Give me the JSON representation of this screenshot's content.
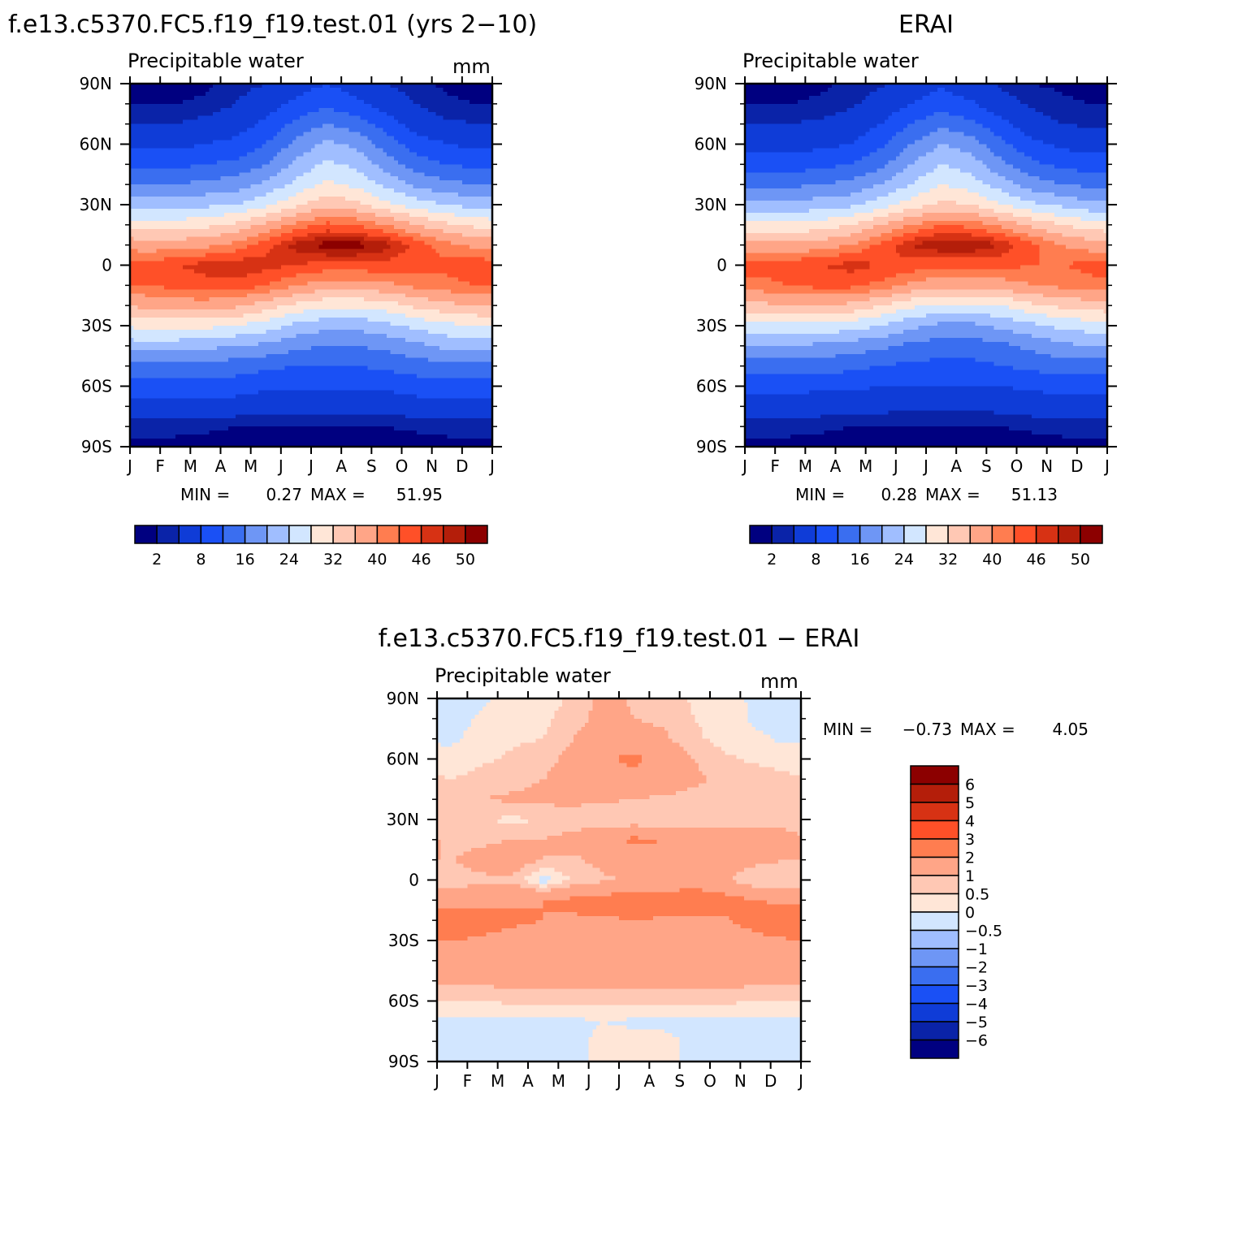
{
  "chart_data": [
    {
      "type": "heatmap",
      "title": "f.e13.c5370.FC5.f19_f19.test.01 (yrs 2−10)",
      "subtitle": "Precipitable water",
      "units": "mm",
      "x_ticks": [
        "J",
        "F",
        "M",
        "A",
        "M",
        "J",
        "J",
        "A",
        "S",
        "O",
        "N",
        "D",
        "J"
      ],
      "y_ticks": [
        "90N",
        "60N",
        "30N",
        "0",
        "30S",
        "60S",
        "90S"
      ],
      "y_values": [
        90,
        60,
        30,
        0,
        -30,
        -60,
        -90
      ],
      "stats": {
        "min_label": "MIN =",
        "min": "0.27",
        "max_label": "MAX =",
        "max": "51.95"
      },
      "months": [
        "Jan",
        "Feb",
        "Mar",
        "Apr",
        "May",
        "Jun",
        "Jul",
        "Aug",
        "Sep",
        "Oct",
        "Nov",
        "Dec"
      ],
      "latitudes": [
        90,
        80,
        70,
        60,
        50,
        40,
        30,
        20,
        10,
        0,
        -10,
        -20,
        -30,
        -40,
        -50,
        -60,
        -70,
        -80,
        -90
      ],
      "values": [
        [
          1,
          1,
          1.5,
          3,
          4,
          6,
          8,
          6,
          4,
          2.5,
          1.5,
          1
        ],
        [
          2,
          2,
          2.5,
          4,
          6,
          9,
          11,
          9,
          6,
          4,
          2.5,
          2
        ],
        [
          4,
          4,
          5,
          6,
          9,
          13,
          16,
          14,
          10,
          6,
          4.5,
          4
        ],
        [
          7,
          7,
          8,
          9,
          12,
          17,
          21,
          19,
          14,
          10,
          8,
          7
        ],
        [
          11,
          11,
          12,
          13,
          16,
          21,
          25,
          23,
          18,
          14,
          12,
          11
        ],
        [
          16,
          16,
          17,
          18,
          21,
          25,
          29,
          27,
          23,
          19,
          17,
          16
        ],
        [
          22,
          22,
          23,
          24,
          27,
          31,
          35,
          33,
          29,
          26,
          24,
          22
        ],
        [
          30,
          30,
          31,
          33,
          37,
          41,
          44,
          43,
          40,
          36,
          33,
          31
        ],
        [
          38,
          38,
          39,
          41,
          45,
          49,
          51,
          51,
          49,
          45,
          41,
          39
        ],
        [
          44,
          46,
          47,
          48,
          47,
          46,
          45,
          45,
          45,
          44,
          44,
          45
        ],
        [
          43,
          44,
          45,
          45,
          43,
          40,
          38,
          38,
          39,
          41,
          42,
          43
        ],
        [
          37,
          38,
          38,
          37,
          34,
          31,
          29,
          29,
          30,
          33,
          35,
          36
        ],
        [
          29,
          29,
          29,
          28,
          26,
          23,
          21,
          21,
          23,
          25,
          27,
          28
        ],
        [
          22,
          22,
          21,
          20,
          19,
          17,
          16,
          16,
          17,
          19,
          21,
          22
        ],
        [
          15,
          15,
          15,
          14,
          13,
          12,
          12,
          12,
          13,
          14,
          15,
          15
        ],
        [
          10,
          10,
          10,
          10,
          9,
          9,
          9,
          9,
          9,
          10,
          10,
          10
        ],
        [
          6,
          6,
          6,
          6,
          5,
          5,
          5,
          5,
          5,
          6,
          6,
          6
        ],
        [
          3,
          3,
          2.5,
          2,
          2,
          1.8,
          1.8,
          1.8,
          2,
          2.5,
          3,
          3
        ],
        [
          1,
          1,
          1,
          0.8,
          0.6,
          0.5,
          0.5,
          0.5,
          0.6,
          0.8,
          1,
          1
        ]
      ],
      "colorbar_labels": [
        "2",
        "8",
        "16",
        "24",
        "32",
        "40",
        "46",
        "50"
      ],
      "levels": [
        2,
        4,
        8,
        12,
        16,
        20,
        24,
        28,
        32,
        36,
        40,
        43,
        46,
        48,
        50
      ],
      "colors": [
        "#000080",
        "#0A23A8",
        "#0F3CD7",
        "#1A50F5",
        "#3A6EF0",
        "#6E96F5",
        "#A0BEFF",
        "#D2E6FF",
        "#FFE6D7",
        "#FFC8B4",
        "#FFA587",
        "#FF7D50",
        "#FF5028",
        "#D73214",
        "#B41E0A",
        "#8C0000"
      ]
    },
    {
      "type": "heatmap",
      "title": "ERAI",
      "subtitle": "Precipitable water",
      "units": "",
      "x_ticks": [
        "J",
        "F",
        "M",
        "A",
        "M",
        "J",
        "J",
        "A",
        "S",
        "O",
        "N",
        "D",
        "J"
      ],
      "y_ticks": [
        "90N",
        "60N",
        "30N",
        "0",
        "30S",
        "60S",
        "90S"
      ],
      "y_values": [
        90,
        60,
        30,
        0,
        -30,
        -60,
        -90
      ],
      "stats": {
        "min_label": "MIN =",
        "min": "0.28",
        "max_label": "MAX =",
        "max": "51.13"
      },
      "months": [
        "Jan",
        "Feb",
        "Mar",
        "Apr",
        "May",
        "Jun",
        "Jul",
        "Aug",
        "Sep",
        "Oct",
        "Nov",
        "Dec"
      ],
      "latitudes": [
        90,
        80,
        70,
        60,
        50,
        40,
        30,
        20,
        10,
        0,
        -10,
        -20,
        -30,
        -40,
        -50,
        -60,
        -70,
        -80,
        -90
      ],
      "values": [
        [
          1,
          1,
          1.5,
          2.5,
          3.5,
          5.5,
          7.5,
          5.5,
          3.5,
          2,
          1.5,
          1
        ],
        [
          2,
          2,
          2.5,
          3.5,
          5.5,
          8,
          10,
          8.5,
          5.5,
          3.5,
          2.5,
          2
        ],
        [
          4,
          4,
          4.5,
          5.5,
          8,
          12,
          15,
          13,
          9,
          5.5,
          4,
          3.5
        ],
        [
          6,
          6,
          7,
          8,
          11,
          16,
          20,
          18,
          13,
          9,
          7,
          6
        ],
        [
          10,
          10,
          11,
          12,
          15,
          20,
          24,
          22,
          17,
          13,
          11,
          10
        ],
        [
          15,
          15,
          16,
          17,
          20,
          24,
          28,
          26,
          22,
          18,
          16,
          15
        ],
        [
          21,
          21,
          22,
          23,
          26,
          30,
          33,
          32,
          28,
          25,
          23,
          21
        ],
        [
          29,
          29,
          30,
          32,
          36,
          40,
          43,
          42,
          39,
          35,
          32,
          30
        ],
        [
          37,
          37,
          38,
          40,
          44,
          48,
          50,
          50,
          48,
          44,
          40,
          38
        ],
        [
          44,
          45,
          46,
          47,
          46,
          45,
          44,
          44,
          44,
          43,
          43,
          44
        ],
        [
          42,
          43,
          44,
          44,
          42,
          39,
          37,
          37,
          38,
          40,
          41,
          42
        ],
        [
          35,
          36,
          36,
          35,
          32,
          29,
          27,
          27,
          28,
          31,
          33,
          34
        ],
        [
          27,
          27,
          27,
          26,
          24,
          21,
          19,
          19,
          21,
          23,
          25,
          26
        ],
        [
          20,
          20,
          19,
          18,
          17,
          15,
          14,
          14,
          15,
          17,
          19,
          20
        ],
        [
          14,
          14,
          14,
          13,
          12,
          11,
          11,
          11,
          12,
          13,
          14,
          14
        ],
        [
          9,
          9,
          9,
          9,
          8,
          8,
          8,
          8,
          8,
          9,
          9,
          9
        ],
        [
          6,
          6,
          5.5,
          5.5,
          5,
          4.5,
          4.5,
          4.5,
          5,
          5.5,
          6,
          6
        ],
        [
          3,
          3,
          2.5,
          2,
          2,
          1.8,
          1.8,
          1.8,
          2,
          2.5,
          3,
          3
        ],
        [
          1,
          1,
          1,
          0.8,
          0.6,
          0.5,
          0.5,
          0.5,
          0.6,
          0.8,
          1,
          1
        ]
      ],
      "colorbar_labels": [
        "2",
        "8",
        "16",
        "24",
        "32",
        "40",
        "46",
        "50"
      ],
      "levels": [
        2,
        4,
        8,
        12,
        16,
        20,
        24,
        28,
        32,
        36,
        40,
        43,
        46,
        48,
        50
      ],
      "colors": [
        "#000080",
        "#0A23A8",
        "#0F3CD7",
        "#1A50F5",
        "#3A6EF0",
        "#6E96F5",
        "#A0BEFF",
        "#D2E6FF",
        "#FFE6D7",
        "#FFC8B4",
        "#FFA587",
        "#FF7D50",
        "#FF5028",
        "#D73214",
        "#B41E0A",
        "#8C0000"
      ]
    },
    {
      "type": "heatmap",
      "title": "f.e13.c5370.FC5.f19_f19.test.01 − ERAI",
      "subtitle": "Precipitable water",
      "units": "mm",
      "x_ticks": [
        "J",
        "F",
        "M",
        "A",
        "M",
        "J",
        "J",
        "A",
        "S",
        "O",
        "N",
        "D",
        "J"
      ],
      "y_ticks": [
        "90N",
        "60N",
        "30N",
        "0",
        "30S",
        "60S",
        "90S"
      ],
      "y_values": [
        90,
        60,
        30,
        0,
        -30,
        -60,
        -90
      ],
      "stats": {
        "min_label": "MIN =",
        "min": "−0.73",
        "max_label": "MAX =",
        "max": "4.05"
      },
      "months": [
        "Jan",
        "Feb",
        "Mar",
        "Apr",
        "May",
        "Jun",
        "Jul",
        "Aug",
        "Sep",
        "Oct",
        "Nov",
        "Dec"
      ],
      "latitudes": [
        90,
        80,
        70,
        60,
        50,
        40,
        30,
        20,
        10,
        0,
        -10,
        -20,
        -30,
        -40,
        -50,
        -60,
        -70,
        -80,
        -90
      ],
      "values": [
        [
          -0.2,
          -0.1,
          0.2,
          0.3,
          0.6,
          1.2,
          0.9,
          0.8,
          0.4,
          0.2,
          -0.1,
          -0.2
        ],
        [
          -0.2,
          0.1,
          0.3,
          0.4,
          0.7,
          1.3,
          1.0,
          0.9,
          0.5,
          0.3,
          -0.1,
          -0.1
        ],
        [
          -0.1,
          0.2,
          0.4,
          0.5,
          1.0,
          1.5,
          1.2,
          1.1,
          0.6,
          0.3,
          0.1,
          -0.1
        ],
        [
          0.2,
          0.4,
          0.6,
          0.8,
          1.2,
          1.8,
          2.3,
          1.5,
          1.0,
          0.6,
          0.4,
          0.3
        ],
        [
          0.5,
          0.7,
          0.8,
          1.0,
          1.3,
          1.5,
          1.6,
          1.4,
          1.1,
          0.9,
          0.8,
          0.6
        ],
        [
          0.8,
          1.0,
          1.1,
          1.2,
          1.2,
          1.1,
          1.0,
          0.9,
          0.8,
          0.8,
          0.8,
          0.9
        ],
        [
          0.6,
          0.5,
          0.4,
          0.5,
          0.6,
          0.6,
          0.5,
          0.5,
          0.6,
          0.7,
          0.8,
          0.7
        ],
        [
          0.8,
          0.9,
          1.0,
          1.0,
          1.3,
          1.7,
          2.2,
          2.0,
          1.8,
          1.6,
          1.4,
          1.3
        ],
        [
          1.0,
          1.2,
          1.4,
          1.0,
          0.9,
          1.2,
          1.5,
          1.6,
          2.0,
          1.5,
          1.2,
          1.0
        ],
        [
          0.8,
          0.9,
          0.9,
          -0.3,
          0.6,
          0.9,
          1.1,
          1.3,
          1.5,
          1.1,
          0.5,
          0.6
        ],
        [
          1.3,
          1.4,
          1.8,
          2.0,
          2.2,
          2.4,
          2.6,
          2.5,
          2.7,
          2.4,
          2.0,
          1.8
        ],
        [
          3.1,
          2.6,
          2.2,
          2.0,
          1.9,
          1.9,
          2.0,
          1.9,
          1.8,
          1.9,
          2.4,
          3.0
        ],
        [
          2.0,
          1.8,
          1.6,
          1.5,
          1.5,
          1.5,
          1.6,
          1.5,
          1.5,
          1.6,
          1.7,
          1.9
        ],
        [
          1.6,
          1.5,
          1.5,
          1.4,
          1.4,
          1.5,
          1.5,
          1.5,
          1.4,
          1.5,
          1.5,
          1.5
        ],
        [
          1.2,
          1.2,
          1.2,
          1.2,
          1.2,
          1.2,
          1.3,
          1.2,
          1.2,
          1.2,
          1.2,
          1.2
        ],
        [
          0.5,
          0.5,
          0.6,
          0.6,
          0.6,
          0.6,
          0.7,
          0.6,
          0.6,
          0.6,
          0.5,
          0.5
        ],
        [
          -0.1,
          -0.1,
          -0.1,
          -0.1,
          -0.1,
          0.0,
          -0.1,
          -0.1,
          -0.1,
          -0.1,
          -0.1,
          -0.1
        ],
        [
          -0.1,
          -0.1,
          -0.1,
          -0.1,
          -0.1,
          0.1,
          0.2,
          0.1,
          -0.1,
          -0.1,
          -0.1,
          -0.1
        ],
        [
          -0.1,
          -0.1,
          -0.1,
          -0.1,
          -0.1,
          0.1,
          0.1,
          0.1,
          -0.1,
          -0.1,
          -0.1,
          -0.1
        ]
      ],
      "colorbar_labels": [
        "6",
        "5",
        "4",
        "3",
        "2",
        "1",
        "0.5",
        "0",
        "−0.5",
        "−1",
        "−2",
        "−3",
        "−4",
        "−5",
        "−6"
      ],
      "levels": [
        -6,
        -5,
        -4,
        -3,
        -2,
        -1,
        -0.5,
        0,
        0.5,
        1,
        2,
        3,
        4,
        5,
        6
      ],
      "colors": [
        "#000080",
        "#0A23A8",
        "#0F3CD7",
        "#1A50F5",
        "#3A6EF0",
        "#6E96F5",
        "#A0BEFF",
        "#D2E6FF",
        "#FFE6D7",
        "#FFC8B4",
        "#FFA587",
        "#FF7D50",
        "#FF5028",
        "#D73214",
        "#B41E0A",
        "#8C0000"
      ]
    }
  ]
}
